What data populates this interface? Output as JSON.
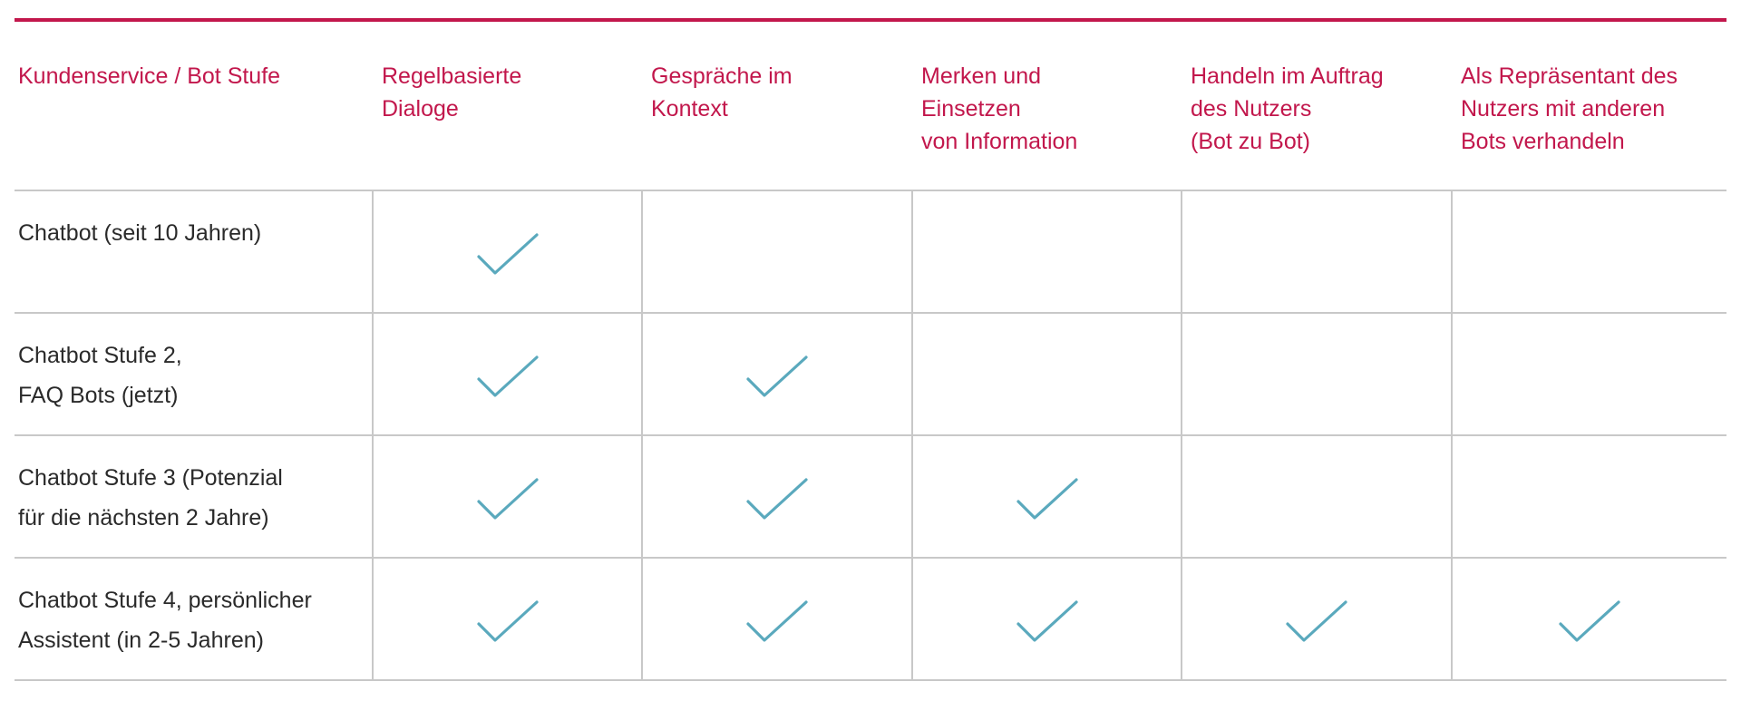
{
  "colors": {
    "accent": "#c2174c",
    "check": "#5aa9bd",
    "rule": "#c8c8c8",
    "text": "#2a2a2a"
  },
  "table": {
    "headers": [
      "Kundenservice / Bot Stufe",
      "Regelbasierte\nDialoge",
      "Gespräche im\nKontext",
      "Merken und\nEinsetzen\nvon Information",
      "Handeln im Auftrag\ndes Nutzers\n(Bot zu Bot)",
      "Als Repräsentant des\nNutzers mit anderen\nBots verhandeln"
    ],
    "rows": [
      {
        "label": "Chatbot (seit 10 Jahren)",
        "checks": [
          true,
          false,
          false,
          false,
          false
        ]
      },
      {
        "label": "Chatbot Stufe 2,\nFAQ Bots (jetzt)",
        "checks": [
          true,
          true,
          false,
          false,
          false
        ]
      },
      {
        "label": "Chatbot Stufe 3 (Potenzial\nfür die nächsten 2 Jahre)",
        "checks": [
          true,
          true,
          true,
          false,
          false
        ]
      },
      {
        "label": "Chatbot Stufe 4, persönlicher\nAssistent (in 2-5 Jahren)",
        "checks": [
          true,
          true,
          true,
          true,
          true
        ]
      }
    ],
    "check_icon": "checkmark-icon"
  }
}
